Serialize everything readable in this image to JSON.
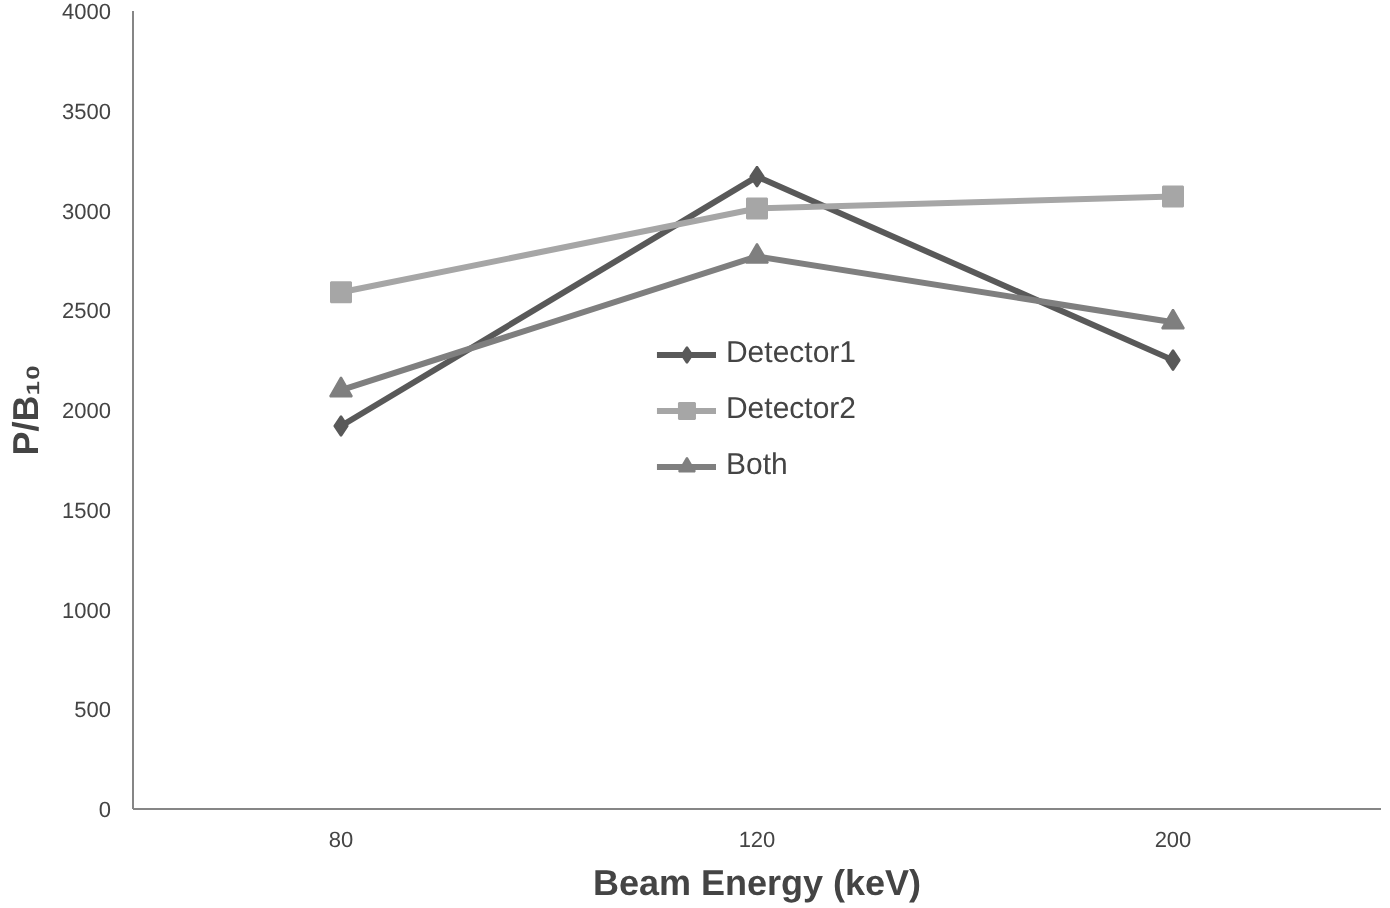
{
  "chart_data": {
    "type": "line",
    "xlabel": "Beam Energy (keV)",
    "ylabel": "P/B₁₀",
    "categories": [
      "80",
      "120",
      "200"
    ],
    "series": [
      {
        "name": "Detector1",
        "color": "#595959",
        "marker": "diamond",
        "values": [
          1920,
          3170,
          2250
        ]
      },
      {
        "name": "Detector2",
        "color": "#a6a6a6",
        "marker": "square",
        "values": [
          2590,
          3010,
          3070
        ]
      },
      {
        "name": "Both",
        "color": "#7f7f7f",
        "marker": "triangle",
        "values": [
          2100,
          2770,
          2440
        ]
      }
    ],
    "ylim": [
      0,
      4000
    ],
    "yticks": [
      0,
      500,
      1000,
      1500,
      2000,
      2500,
      3000,
      3500,
      4000
    ],
    "grid": false,
    "legend": "center",
    "line_style": "solid"
  }
}
